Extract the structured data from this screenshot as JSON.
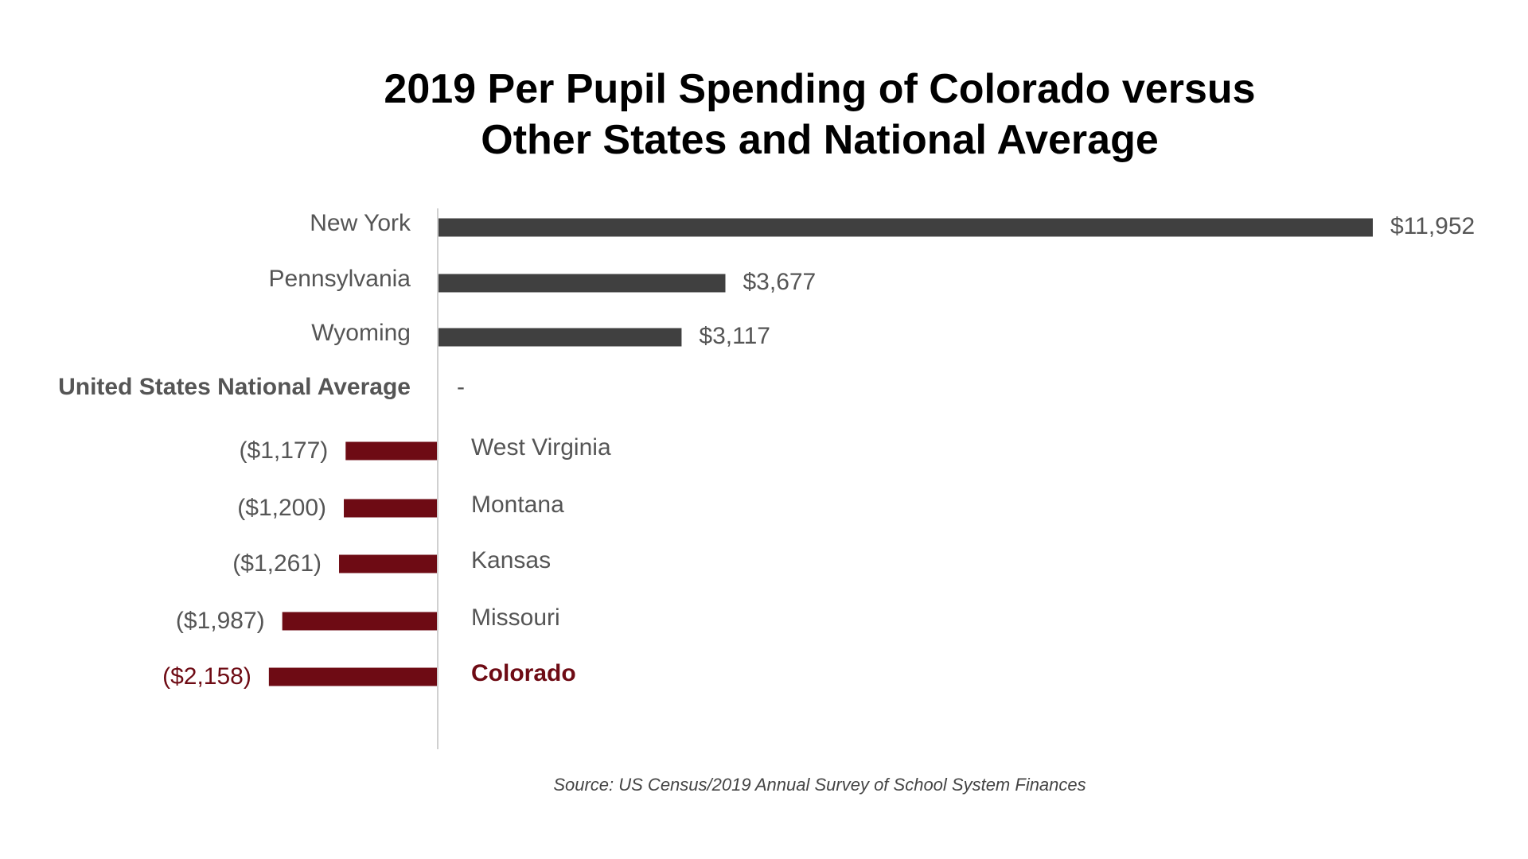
{
  "chart_data": {
    "type": "bar",
    "orientation": "horizontal",
    "title_lines": [
      "2019 Per Pupil Spending of Colorado versus",
      "Other States and National Average"
    ],
    "categories": [
      "New York",
      "Pennsylvania",
      "Wyoming",
      "United States National Average",
      "West Virginia",
      "Montana",
      "Kansas",
      "Missouri",
      "Colorado"
    ],
    "values": [
      11952,
      3677,
      3117,
      0,
      -1177,
      -1200,
      -1261,
      -1987,
      -2158
    ],
    "value_labels": [
      "$11,952",
      "$3,677",
      "$3,117",
      "-",
      "($1,177)",
      "($1,200)",
      "($1,261)",
      "($1,987)",
      "($2,158)"
    ],
    "highlight": [
      "United States National Average",
      "Colorado"
    ],
    "xlim": [
      -2200,
      12000
    ],
    "grid": false,
    "legend": "none",
    "colors": {
      "positive": "#404040",
      "negative": "#6e0b14",
      "category_label": "#555555",
      "highlight_text": "#6e0b14",
      "axis": "#d0d0d0"
    },
    "source": "Source: US Census/2019 Annual Survey of School System Finances"
  }
}
